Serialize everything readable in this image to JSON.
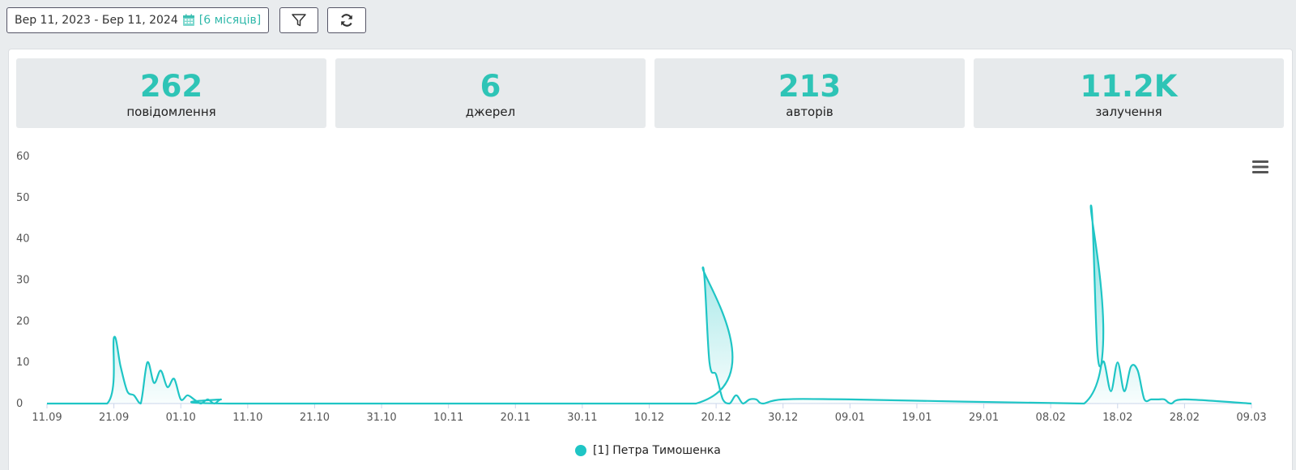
{
  "toolbar": {
    "date_range": "Вер 11, 2023 - Бер 11, 2024",
    "period": "[6 місяців]",
    "filter_icon": "filter-icon",
    "refresh_icon": "refresh-icon"
  },
  "stats": [
    {
      "value": "262",
      "label": "повідомлення"
    },
    {
      "value": "6",
      "label": "джерел"
    },
    {
      "value": "213",
      "label": "авторів"
    },
    {
      "value": "11.2K",
      "label": "залучення"
    }
  ],
  "colors": {
    "accent": "#2ec4b6",
    "series": "#1fc5c5"
  },
  "chart_data": {
    "type": "area",
    "title": "",
    "xlabel": "",
    "ylabel": "",
    "ylim": [
      0,
      60
    ],
    "yticks": [
      0,
      10,
      20,
      30,
      40,
      50,
      60
    ],
    "x_start": "11.09",
    "x_ticks": [
      "11.09",
      "21.09",
      "01.10",
      "11.10",
      "21.10",
      "31.10",
      "10.11",
      "20.11",
      "30.11",
      "10.12",
      "20.12",
      "30.12",
      "09.01",
      "19.01",
      "29.01",
      "08.02",
      "18.02",
      "28.02",
      "09.03"
    ],
    "legend_position": "bottom-center",
    "grid": false,
    "series": [
      {
        "name": "[1] Петра Тимошенка",
        "x": [
          "20.09",
          "21.09",
          "22.09",
          "23.09",
          "24.09",
          "25.09",
          "26.09",
          "27.09",
          "28.09",
          "29.09",
          "30.09",
          "01.10",
          "02.10",
          "03.10",
          "04.10",
          "05.10",
          "06.10",
          "07.10",
          "08.10",
          "17.12",
          "18.12",
          "19.12",
          "20.12",
          "21.12",
          "22.12",
          "23.12",
          "24.12",
          "25.12",
          "26.12",
          "27.12",
          "30.12",
          "09.01",
          "13.02",
          "14.02",
          "15.02",
          "16.02",
          "17.02",
          "18.02",
          "19.02",
          "20.02",
          "21.02",
          "22.02",
          "23.02",
          "24.02",
          "25.02",
          "26.02",
          "28.02"
        ],
        "values": [
          0,
          16,
          9,
          3,
          2,
          0,
          10,
          5,
          8,
          4,
          6,
          1,
          2,
          1,
          0,
          1,
          0,
          1,
          0,
          0,
          33,
          10,
          7,
          1,
          0,
          2,
          0,
          1,
          1,
          0,
          1,
          1,
          0,
          48,
          12,
          10,
          3,
          10,
          3,
          9,
          8,
          1,
          1,
          1,
          1,
          0,
          1
        ]
      }
    ]
  },
  "menu_icon": "hamburger-menu-icon"
}
